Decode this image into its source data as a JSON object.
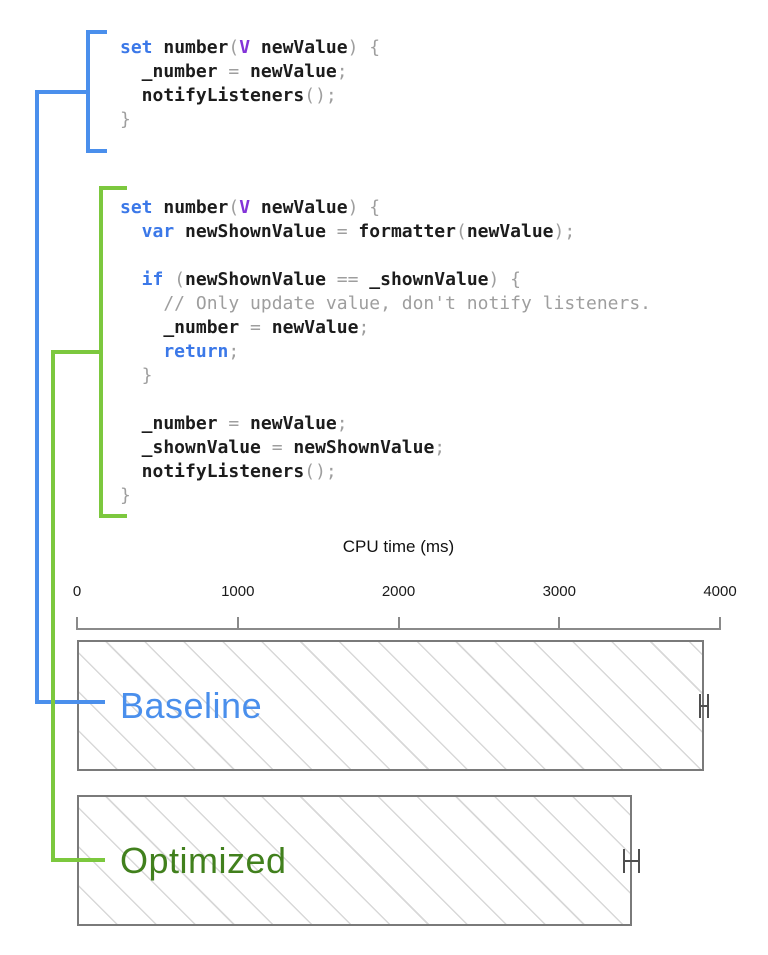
{
  "colors": {
    "accent-blue": "#4a8fec",
    "accent-green": "#7cc83e",
    "keyword": "#3b78e8",
    "type": "#8333d8",
    "identifier": "#1c1c1c",
    "muted": "#9e9e9e",
    "bar-border": "#7a7a7a",
    "hatch": "#d8d8d8",
    "axis": "#8a8a8a",
    "error-bar": "#4f4f4f"
  },
  "code_snippets": [
    {
      "label": "baseline",
      "lines": [
        [
          {
            "c": "kw",
            "t": "set"
          },
          {
            "c": "id",
            "t": " number"
          },
          {
            "c": "pu",
            "t": "("
          },
          {
            "c": "ty",
            "t": "V"
          },
          {
            "c": "id",
            "t": " newValue"
          },
          {
            "c": "pu",
            "t": ") {"
          }
        ],
        [
          {
            "c": "id",
            "t": "  _number "
          },
          {
            "c": "pu",
            "t": "="
          },
          {
            "c": "id",
            "t": " newValue"
          },
          {
            "c": "pu",
            "t": ";"
          }
        ],
        [
          {
            "c": "id",
            "t": "  notifyListeners"
          },
          {
            "c": "pu",
            "t": "();"
          }
        ],
        [
          {
            "c": "pu",
            "t": "}"
          }
        ]
      ]
    },
    {
      "label": "optimized",
      "lines": [
        [
          {
            "c": "kw",
            "t": "set"
          },
          {
            "c": "id",
            "t": " number"
          },
          {
            "c": "pu",
            "t": "("
          },
          {
            "c": "ty",
            "t": "V"
          },
          {
            "c": "id",
            "t": " newValue"
          },
          {
            "c": "pu",
            "t": ") {"
          }
        ],
        [
          {
            "c": "kw",
            "t": "  var"
          },
          {
            "c": "id",
            "t": " newShownValue "
          },
          {
            "c": "pu",
            "t": "="
          },
          {
            "c": "id",
            "t": " formatter"
          },
          {
            "c": "pu",
            "t": "("
          },
          {
            "c": "id",
            "t": "newValue"
          },
          {
            "c": "pu",
            "t": ");"
          }
        ],
        [],
        [
          {
            "c": "kw",
            "t": "  if"
          },
          {
            "c": "pu",
            "t": " ("
          },
          {
            "c": "id",
            "t": "newShownValue "
          },
          {
            "c": "pu",
            "t": "=="
          },
          {
            "c": "id",
            "t": " _shownValue"
          },
          {
            "c": "pu",
            "t": ") {"
          }
        ],
        [
          {
            "c": "cm",
            "t": "    // Only update value, don't notify listeners."
          }
        ],
        [
          {
            "c": "id",
            "t": "    _number "
          },
          {
            "c": "pu",
            "t": "="
          },
          {
            "c": "id",
            "t": " newValue"
          },
          {
            "c": "pu",
            "t": ";"
          }
        ],
        [
          {
            "c": "kw",
            "t": "    return"
          },
          {
            "c": "pu",
            "t": ";"
          }
        ],
        [
          {
            "c": "pu",
            "t": "  }"
          }
        ],
        [],
        [
          {
            "c": "id",
            "t": "  _number "
          },
          {
            "c": "pu",
            "t": "="
          },
          {
            "c": "id",
            "t": " newValue"
          },
          {
            "c": "pu",
            "t": ";"
          }
        ],
        [
          {
            "c": "id",
            "t": "  _shownValue "
          },
          {
            "c": "pu",
            "t": "="
          },
          {
            "c": "id",
            "t": " newShownValue"
          },
          {
            "c": "pu",
            "t": ";"
          }
        ],
        [
          {
            "c": "id",
            "t": "  notifyListeners"
          },
          {
            "c": "pu",
            "t": "();"
          }
        ],
        [
          {
            "c": "pu",
            "t": "}"
          }
        ]
      ]
    }
  ],
  "chart_data": {
    "type": "bar",
    "orientation": "horizontal",
    "title": "CPU time (ms)",
    "xlabel": "CPU time (ms)",
    "xlim": [
      0,
      4000
    ],
    "xticks": [
      0,
      1000,
      2000,
      3000,
      4000
    ],
    "categories": [
      "Baseline",
      "Optimized"
    ],
    "values": [
      3900,
      3450
    ],
    "errors": [
      30,
      55
    ],
    "label_colors": [
      "#4a8fec",
      "#41801d"
    ],
    "bar_fill": "white-diagonal-hatch",
    "legend": "none",
    "grid": false
  }
}
